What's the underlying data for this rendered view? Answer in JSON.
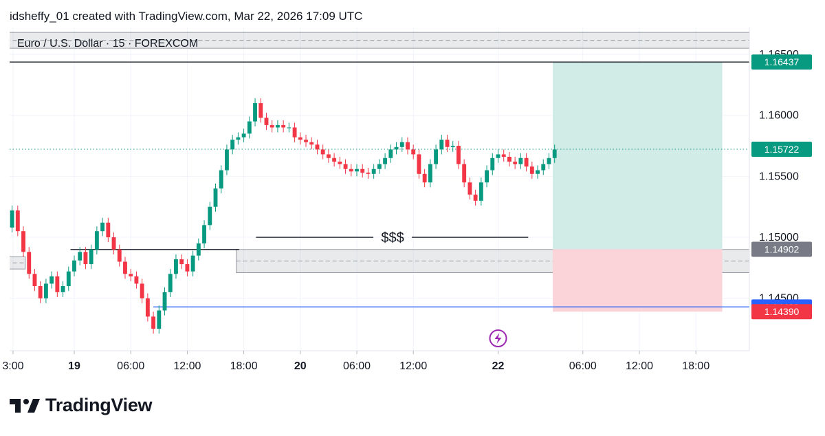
{
  "header": {
    "attribution": "idsheffy_01 created with TradingView.com, Mar 22, 2026 17:09 UTC"
  },
  "chart_data": {
    "type": "candlestick",
    "title": "Euro / U.S. Dollar · 15 · FOREXCOM",
    "ylim": [
      1.1407,
      1.1672
    ],
    "y_ticks": [
      {
        "value": 1.165,
        "label": "1.16500"
      },
      {
        "value": 1.16,
        "label": "1.16000"
      },
      {
        "value": 1.155,
        "label": "1.15500"
      },
      {
        "value": 1.15,
        "label": "1.15000"
      },
      {
        "value": 1.145,
        "label": "1.14500"
      }
    ],
    "x_ticks": [
      {
        "t": -3.5,
        "label": "3:00",
        "bold": false
      },
      {
        "t": 3,
        "label": "19",
        "bold": true
      },
      {
        "t": 9,
        "label": "06:00",
        "bold": false
      },
      {
        "t": 15,
        "label": "12:00",
        "bold": false
      },
      {
        "t": 21,
        "label": "18:00",
        "bold": false
      },
      {
        "t": 27,
        "label": "20",
        "bold": true
      },
      {
        "t": 33,
        "label": "06:00",
        "bold": false
      },
      {
        "t": 39,
        "label": "12:00",
        "bold": false
      },
      {
        "t": 48,
        "label": "22",
        "bold": true
      },
      {
        "t": 57,
        "label": "06:00",
        "bold": false
      },
      {
        "t": 63,
        "label": "12:00",
        "bold": false
      },
      {
        "t": 69,
        "label": "18:00",
        "bold": false
      }
    ],
    "close_series": [
      [
        -4.2,
        1.1508
      ],
      [
        -3.6,
        1.1522
      ],
      [
        -3.0,
        1.1505
      ],
      [
        -2.4,
        1.1488
      ],
      [
        -1.8,
        1.147
      ],
      [
        -1.2,
        1.146
      ],
      [
        -0.6,
        1.145
      ],
      [
        0.0,
        1.1462
      ],
      [
        0.6,
        1.1468
      ],
      [
        1.2,
        1.1455
      ],
      [
        1.8,
        1.146
      ],
      [
        2.4,
        1.1472
      ],
      [
        3.0,
        1.1481
      ],
      [
        3.6,
        1.1488
      ],
      [
        4.2,
        1.1478
      ],
      [
        4.8,
        1.149
      ],
      [
        5.4,
        1.1505
      ],
      [
        6.0,
        1.1512
      ],
      [
        6.6,
        1.15
      ],
      [
        7.2,
        1.149
      ],
      [
        7.8,
        1.148
      ],
      [
        8.4,
        1.147
      ],
      [
        9.0,
        1.1468
      ],
      [
        9.6,
        1.1462
      ],
      [
        10.2,
        1.145
      ],
      [
        10.8,
        1.1435
      ],
      [
        11.4,
        1.1425
      ],
      [
        12.0,
        1.144
      ],
      [
        12.6,
        1.1455
      ],
      [
        13.2,
        1.147
      ],
      [
        13.8,
        1.1482
      ],
      [
        14.4,
        1.1478
      ],
      [
        15.0,
        1.1472
      ],
      [
        15.6,
        1.1485
      ],
      [
        16.2,
        1.1495
      ],
      [
        16.8,
        1.151
      ],
      [
        17.4,
        1.1525
      ],
      [
        18.0,
        1.154
      ],
      [
        18.6,
        1.1555
      ],
      [
        19.2,
        1.1572
      ],
      [
        19.8,
        1.158
      ],
      [
        20.4,
        1.1582
      ],
      [
        21.0,
        1.1585
      ],
      [
        21.6,
        1.1595
      ],
      [
        22.2,
        1.161
      ],
      [
        22.8,
        1.1598
      ],
      [
        23.4,
        1.1592
      ],
      [
        24.0,
        1.159
      ],
      [
        24.6,
        1.1592
      ],
      [
        25.2,
        1.159
      ],
      [
        25.8,
        1.159
      ],
      [
        26.4,
        1.1582
      ],
      [
        27.0,
        1.158
      ],
      [
        27.6,
        1.1578
      ],
      [
        28.2,
        1.1576
      ],
      [
        28.8,
        1.1572
      ],
      [
        29.4,
        1.1568
      ],
      [
        30.0,
        1.1565
      ],
      [
        30.6,
        1.1562
      ],
      [
        31.2,
        1.156
      ],
      [
        31.8,
        1.1556
      ],
      [
        32.4,
        1.1554
      ],
      [
        33.0,
        1.1556
      ],
      [
        33.6,
        1.1553
      ],
      [
        34.2,
        1.1552
      ],
      [
        34.8,
        1.1556
      ],
      [
        35.4,
        1.156
      ],
      [
        36.0,
        1.1565
      ],
      [
        36.6,
        1.1572
      ],
      [
        37.2,
        1.1574
      ],
      [
        37.8,
        1.1578
      ],
      [
        38.4,
        1.1572
      ],
      [
        39.0,
        1.1568
      ],
      [
        39.6,
        1.1552
      ],
      [
        40.2,
        1.1545
      ],
      [
        40.8,
        1.156
      ],
      [
        41.4,
        1.1572
      ],
      [
        42.0,
        1.158
      ],
      [
        42.6,
        1.1574
      ],
      [
        43.2,
        1.1575
      ],
      [
        43.8,
        1.156
      ],
      [
        44.4,
        1.1545
      ],
      [
        45.0,
        1.1535
      ],
      [
        45.6,
        1.153
      ],
      [
        46.2,
        1.1545
      ],
      [
        46.8,
        1.1555
      ],
      [
        47.4,
        1.1565
      ],
      [
        48.0,
        1.1568
      ],
      [
        48.6,
        1.1566
      ],
      [
        49.2,
        1.1562
      ],
      [
        49.8,
        1.156
      ],
      [
        50.4,
        1.1565
      ],
      [
        51.0,
        1.1558
      ],
      [
        51.6,
        1.1552
      ],
      [
        52.2,
        1.1555
      ],
      [
        52.8,
        1.156
      ],
      [
        53.4,
        1.1565
      ],
      [
        54.0,
        1.1572
      ]
    ],
    "zones": [
      {
        "name": "upper-zone",
        "t0": -5,
        "t1": 80,
        "top": 1.1668,
        "bottom": 1.1655
      },
      {
        "name": "demand-zone",
        "t0": 20.2,
        "t1": 76,
        "top": 1.149,
        "bottom": 1.1471
      },
      {
        "name": "left-zone",
        "t0": -5,
        "t1": -2.2,
        "top": 1.1484,
        "bottom": 1.1474
      }
    ],
    "position": {
      "t0": 53.8,
      "t1": 71.8,
      "entry": 1.14902,
      "target": 1.16437,
      "stop": 1.1439
    },
    "lines": [
      {
        "name": "target-arrow-line",
        "t0": -5,
        "t1": 75.5,
        "y": 1.16437,
        "color": "#131722",
        "arrow": true
      },
      {
        "name": "swing-high-line",
        "t0": 2.6,
        "t1": 20.5,
        "y": 1.149,
        "color": "#131722"
      },
      {
        "name": "swing-low-line",
        "t0": 11.4,
        "t1": 85,
        "y": 1.14429,
        "color": "#2962ff"
      }
    ],
    "liquidity_label": {
      "text": "$$$",
      "t0": 22.3,
      "t1": 51.2,
      "y": 1.15,
      "label_t": 36.8
    },
    "dotted_price": 1.15722,
    "price_tags": [
      {
        "value": 1.16437,
        "label": "1.16437",
        "color": "#089981"
      },
      {
        "value": 1.15722,
        "label": "1.15722",
        "color": "#089981"
      },
      {
        "value": 1.14902,
        "label": "1.14902",
        "color": "#787b86"
      },
      {
        "value": 1.14429,
        "label": "1.14429",
        "color": "#2962ff"
      },
      {
        "value": 1.1439,
        "label": "1.14390",
        "color": "#f23645"
      }
    ],
    "colors": {
      "up": "#089981",
      "down": "#f23645",
      "grid": "#f0f3fa",
      "profit": "#d1ece6",
      "loss": "#fad4d9",
      "event": "#9c27b0"
    },
    "event_marker_t": 48,
    "grid": true
  },
  "footer": {
    "logo_text": "TradingView",
    "logo_icon": "tradingview-logo-icon"
  }
}
